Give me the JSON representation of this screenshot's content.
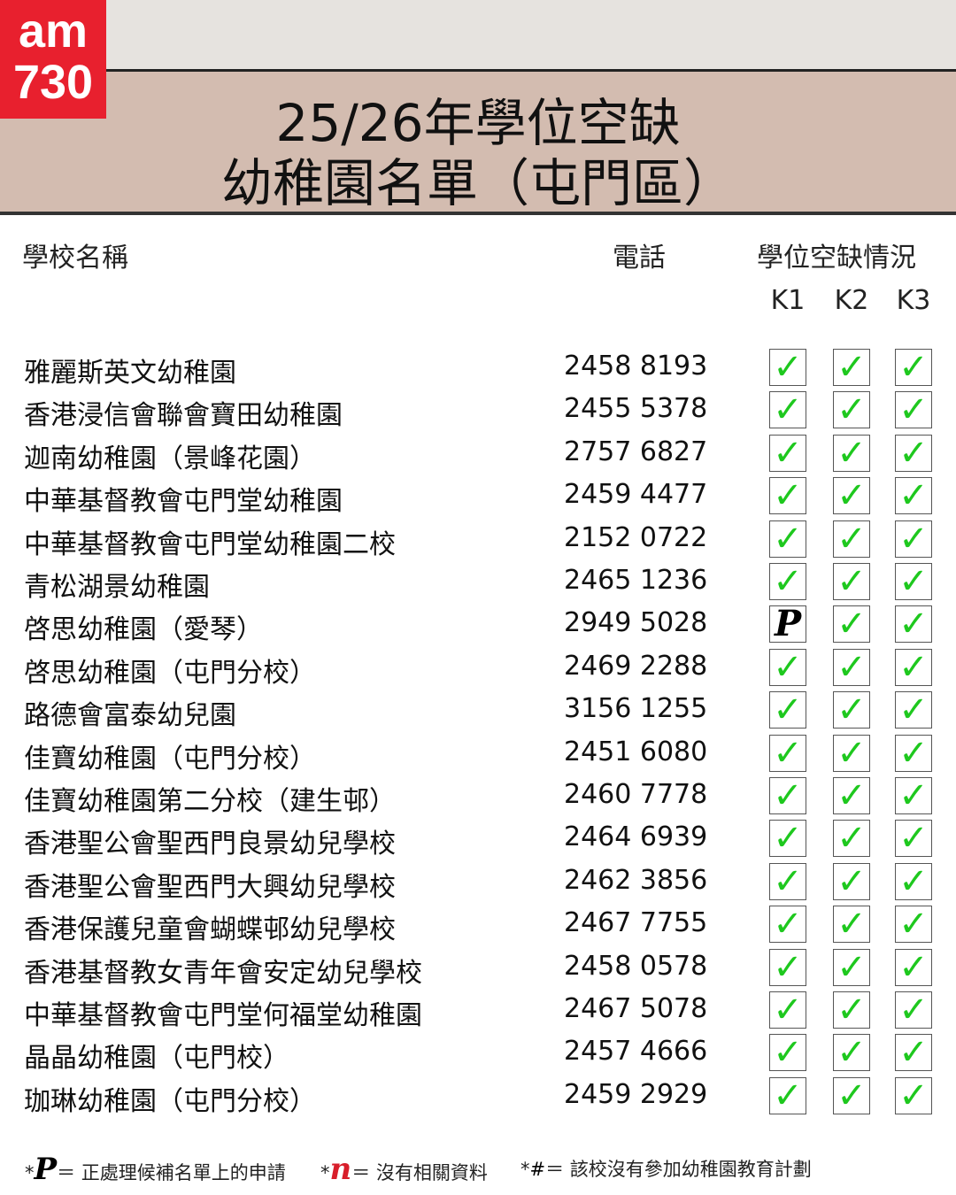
{
  "logo": {
    "line1": "am",
    "line2": "730"
  },
  "header": {
    "title_line1": "25/26年學位空缺",
    "title_line2": "幼稚園名單（屯門區）"
  },
  "table": {
    "columns": {
      "name": "學校名稱",
      "phone": "電話",
      "vacancy": "學位空缺情況",
      "levels": [
        "K1",
        "K2",
        "K3"
      ]
    },
    "rows": [
      [
        "雅麗斯英文幼稚園",
        "2458 8193",
        [
          "✓",
          "✓",
          "✓"
        ]
      ],
      [
        "香港浸信會聯會寶田幼稚園",
        "2455 5378",
        [
          "✓",
          "✓",
          "✓"
        ]
      ],
      [
        "迦南幼稚園（景峰花園）",
        "2757 6827",
        [
          "✓",
          "✓",
          "✓"
        ]
      ],
      [
        "中華基督教會屯門堂幼稚園",
        "2459 4477",
        [
          "✓",
          "✓",
          "✓"
        ]
      ],
      [
        "中華基督教會屯門堂幼稚園二校",
        "2152 0722",
        [
          "✓",
          "✓",
          "✓"
        ]
      ],
      [
        "青松湖景幼稚園",
        "2465 1236",
        [
          "✓",
          "✓",
          "✓"
        ]
      ],
      [
        "啓思幼稚園（愛琴）",
        "2949 5028",
        [
          "P",
          "✓",
          "✓"
        ]
      ],
      [
        "啓思幼稚園（屯門分校）",
        "2469 2288",
        [
          "✓",
          "✓",
          "✓"
        ]
      ],
      [
        "路德會富泰幼兒園",
        "3156 1255",
        [
          "✓",
          "✓",
          "✓"
        ]
      ],
      [
        "佳寶幼稚園（屯門分校）",
        "2451 6080",
        [
          "✓",
          "✓",
          "✓"
        ]
      ],
      [
        "佳寶幼稚園第二分校（建生邨）",
        "2460 7778",
        [
          "✓",
          "✓",
          "✓"
        ]
      ],
      [
        "香港聖公會聖西門良景幼兒學校",
        "2464 6939",
        [
          "✓",
          "✓",
          "✓"
        ]
      ],
      [
        "香港聖公會聖西門大興幼兒學校",
        "2462 3856",
        [
          "✓",
          "✓",
          "✓"
        ]
      ],
      [
        "香港保護兒童會蝴蝶邨幼兒學校",
        "2467 7755",
        [
          "✓",
          "✓",
          "✓"
        ]
      ],
      [
        "香港基督教女青年會安定幼兒學校",
        "2458 0578",
        [
          "✓",
          "✓",
          "✓"
        ]
      ],
      [
        "中華基督教會屯門堂何福堂幼稚園",
        "2467 5078",
        [
          "✓",
          "✓",
          "✓"
        ]
      ],
      [
        "晶晶幼稚園（屯門校）",
        "2457 4666",
        [
          "✓",
          "✓",
          "✓"
        ]
      ],
      [
        "珈琳幼稚園（屯門分校）",
        "2459 2929",
        [
          "✓",
          "✓",
          "✓"
        ]
      ]
    ]
  },
  "legend": [
    {
      "mark": "*",
      "symbol": "P",
      "text": "＝ 正處理候補名單上的申請"
    },
    {
      "mark": "*",
      "symbol": "n",
      "text": "＝ 沒有相關資料"
    },
    {
      "mark": "*",
      "symbol": "#",
      "text": "＝ 該校沒有參加幼稚園教育計劃"
    }
  ]
}
